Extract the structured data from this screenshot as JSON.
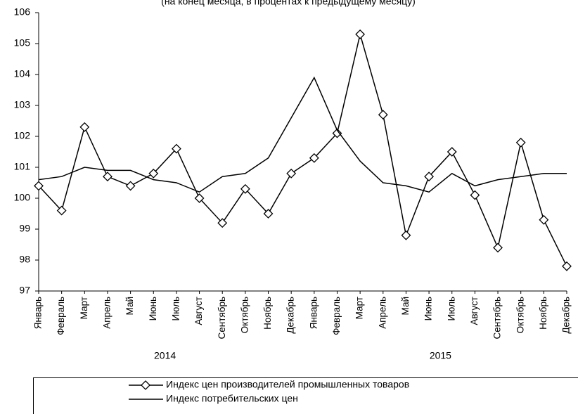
{
  "chart_data": {
    "type": "line",
    "subtitle": "(на конец месяца, в процентах к  предыдущему месяцу)",
    "categories": [
      "Январь",
      "Февраль",
      "Март",
      "Апрель",
      "Май",
      "Июнь",
      "Июль",
      "Август",
      "Сентябрь",
      "Октябрь",
      "Ноябрь",
      "Декабрь",
      "Январь",
      "Февраль",
      "Март",
      "Апрель",
      "Май",
      "Июнь",
      "Июль",
      "Август",
      "Сентябрь",
      "Октябрь",
      "Ноябрь",
      "Декабрь"
    ],
    "category_groups": [
      "2014",
      "2015"
    ],
    "series": [
      {
        "name": "Индекс цен производителей промышленных товаров",
        "color": "#000000",
        "marker": "diamond",
        "values": [
          100.4,
          99.6,
          102.3,
          100.7,
          100.4,
          100.8,
          101.6,
          100.0,
          99.2,
          100.3,
          99.5,
          100.8,
          101.3,
          102.1,
          105.3,
          102.7,
          98.8,
          100.7,
          101.5,
          100.1,
          98.4,
          101.8,
          99.3,
          97.8
        ]
      },
      {
        "name": "Индекс потребительских цен",
        "color": "#000000",
        "marker": "none",
        "values": [
          100.6,
          100.7,
          101.0,
          100.9,
          100.9,
          100.6,
          100.5,
          100.2,
          100.7,
          100.8,
          101.3,
          102.6,
          103.9,
          102.2,
          101.2,
          100.5,
          100.4,
          100.2,
          100.8,
          100.4,
          100.6,
          100.7,
          100.8,
          100.8
        ]
      }
    ],
    "ylim": [
      97,
      106
    ],
    "yticks": [
      97,
      98,
      99,
      100,
      101,
      102,
      103,
      104,
      105,
      106
    ],
    "grid": false,
    "legend": "bottom"
  }
}
